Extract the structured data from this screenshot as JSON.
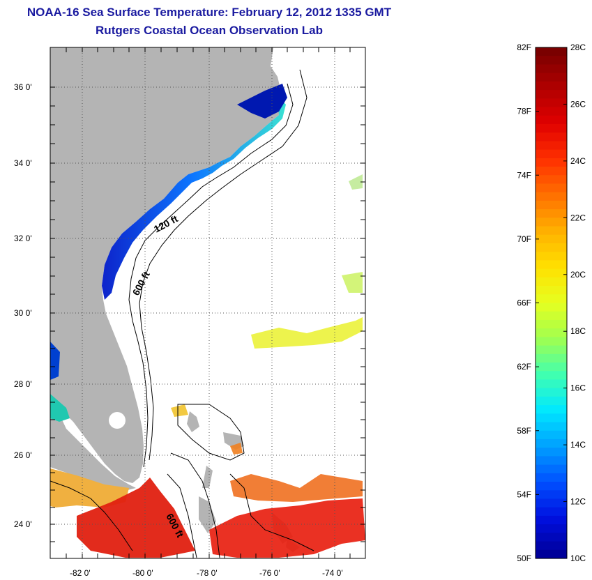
{
  "title": "NOAA-16 Sea Surface Temperature:  February 12, 2012 1335 GMT",
  "subtitle": "Rutgers Coastal Ocean Observation Lab",
  "lat_labels": [
    "36 0'",
    "34 0'",
    "32 0'",
    "30 0'",
    "28 0'",
    "26 0'",
    "24 0'"
  ],
  "lon_labels": [
    "-82 0'",
    "-80 0'",
    "-78 0'",
    "-76 0'",
    "-74 0'"
  ],
  "contour_labels": [
    "120 ft",
    "600 ft",
    "600 ft"
  ],
  "colorbar": {
    "fahrenheit": [
      "82F",
      "78F",
      "74F",
      "70F",
      "66F",
      "62F",
      "58F",
      "54F",
      "50F"
    ],
    "celsius": [
      "28C",
      "26C",
      "24C",
      "22C",
      "20C",
      "18C",
      "16C",
      "14C",
      "12C",
      "10C"
    ],
    "colors": [
      "#7a0000",
      "#b00000",
      "#e00000",
      "#ff3000",
      "#ff7000",
      "#ffb000",
      "#ffe000",
      "#e6ff20",
      "#a0ff50",
      "#40ffb0",
      "#00e8ff",
      "#00a0ff",
      "#0050ff",
      "#0010e0",
      "#00009a"
    ]
  },
  "colors": {
    "land": "#b4b4b4",
    "title": "#1a1aa0"
  }
}
